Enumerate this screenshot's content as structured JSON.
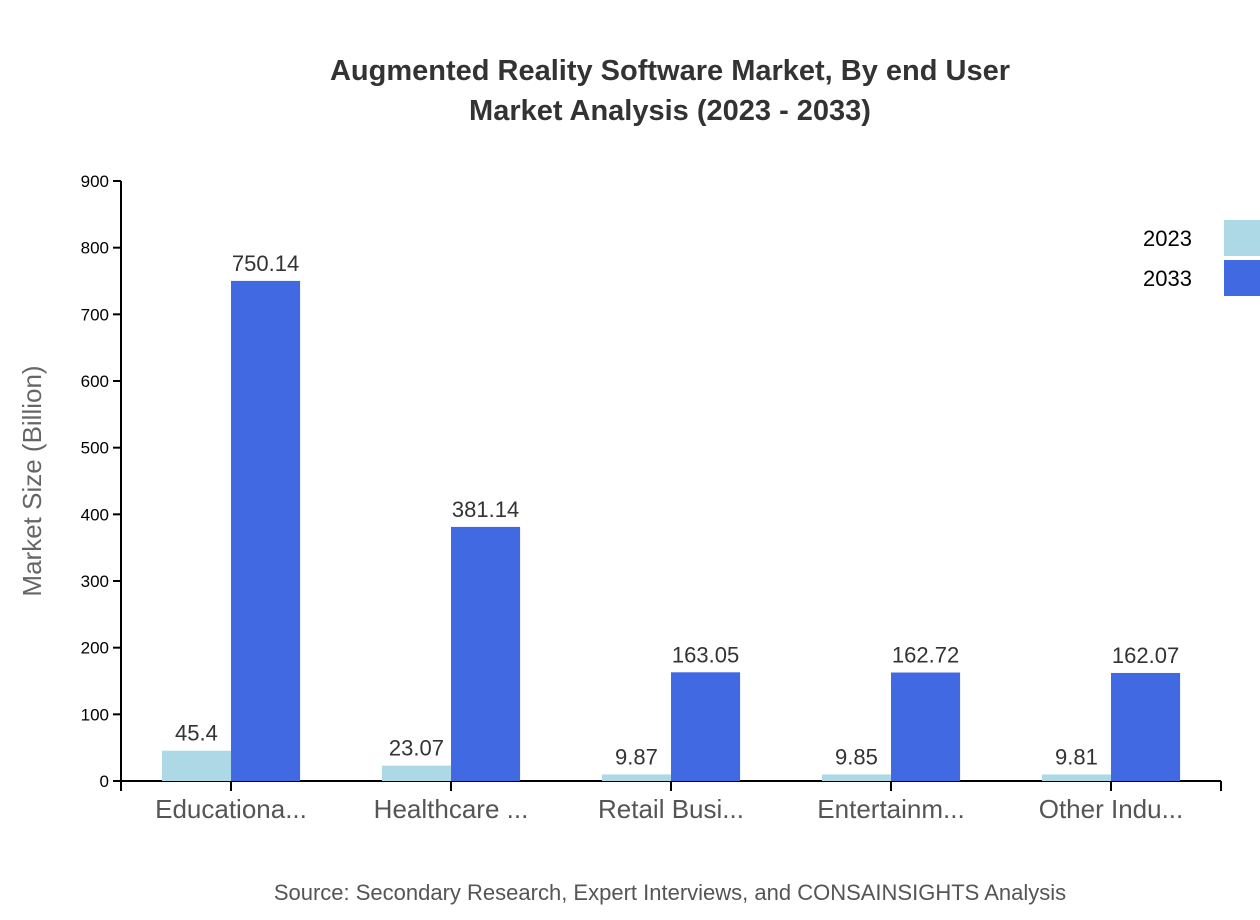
{
  "chart_data": {
    "type": "bar",
    "title_lines": [
      "Augmented Reality Software Market, By end User",
      "Market Analysis (2023 - 2033)"
    ],
    "xlabel": "",
    "ylabel": "Market Size (Billion)",
    "ylim": [
      0,
      900
    ],
    "yticks": [
      0,
      100,
      200,
      300,
      400,
      500,
      600,
      700,
      800,
      900
    ],
    "categories": [
      "Educationa...",
      "Healthcare ...",
      "Retail Busi...",
      "Entertainm...",
      "Other Indu..."
    ],
    "series": [
      {
        "name": "2023",
        "color": "#add8e6",
        "values": [
          45.4,
          23.07,
          9.87,
          9.85,
          9.81
        ]
      },
      {
        "name": "2033",
        "color": "#4169e1",
        "values": [
          750.14,
          381.14,
          163.05,
          162.72,
          162.07
        ]
      }
    ],
    "legend_position": "top-right",
    "grid": false,
    "source": "Source: Secondary Research, Expert Interviews, and CONSAINSIGHTS Analysis"
  }
}
